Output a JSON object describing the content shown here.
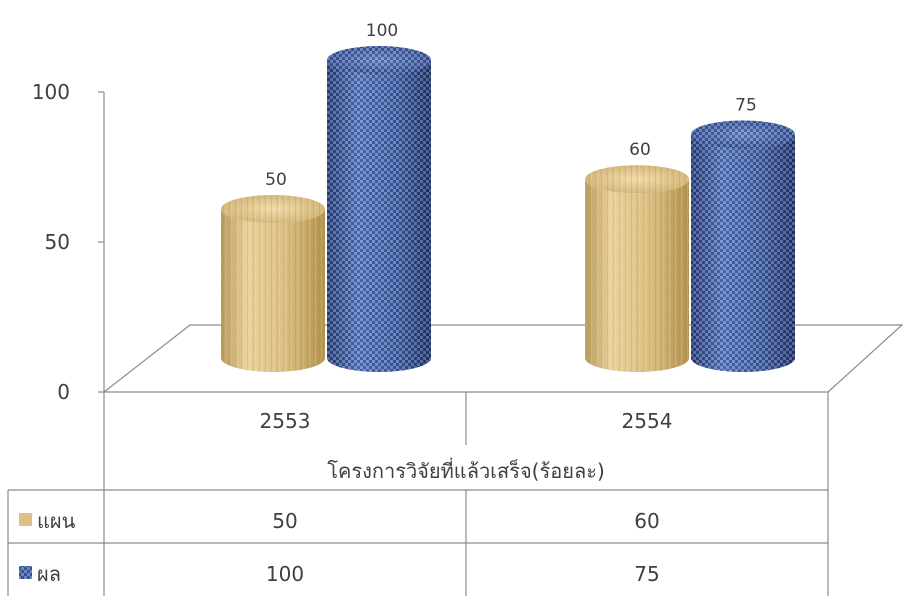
{
  "chart_data": {
    "type": "bar",
    "style": "3d-cylinder",
    "xlabel": "โครงการวิจัยที่แล้วเสร็จ(ร้อยละ)",
    "categories": [
      "2553",
      "2554"
    ],
    "series": [
      {
        "name": "แผน",
        "values": [
          50,
          60
        ],
        "texture": "wood",
        "color": "#e4c98d"
      },
      {
        "name": "ผล",
        "values": [
          100,
          75
        ],
        "texture": "denim",
        "color": "#3b5aa6"
      }
    ],
    "ylim": [
      0,
      100
    ],
    "yticks": [
      0,
      50,
      100
    ],
    "data_labels": true,
    "legend": "data-table-below",
    "grid": false
  }
}
